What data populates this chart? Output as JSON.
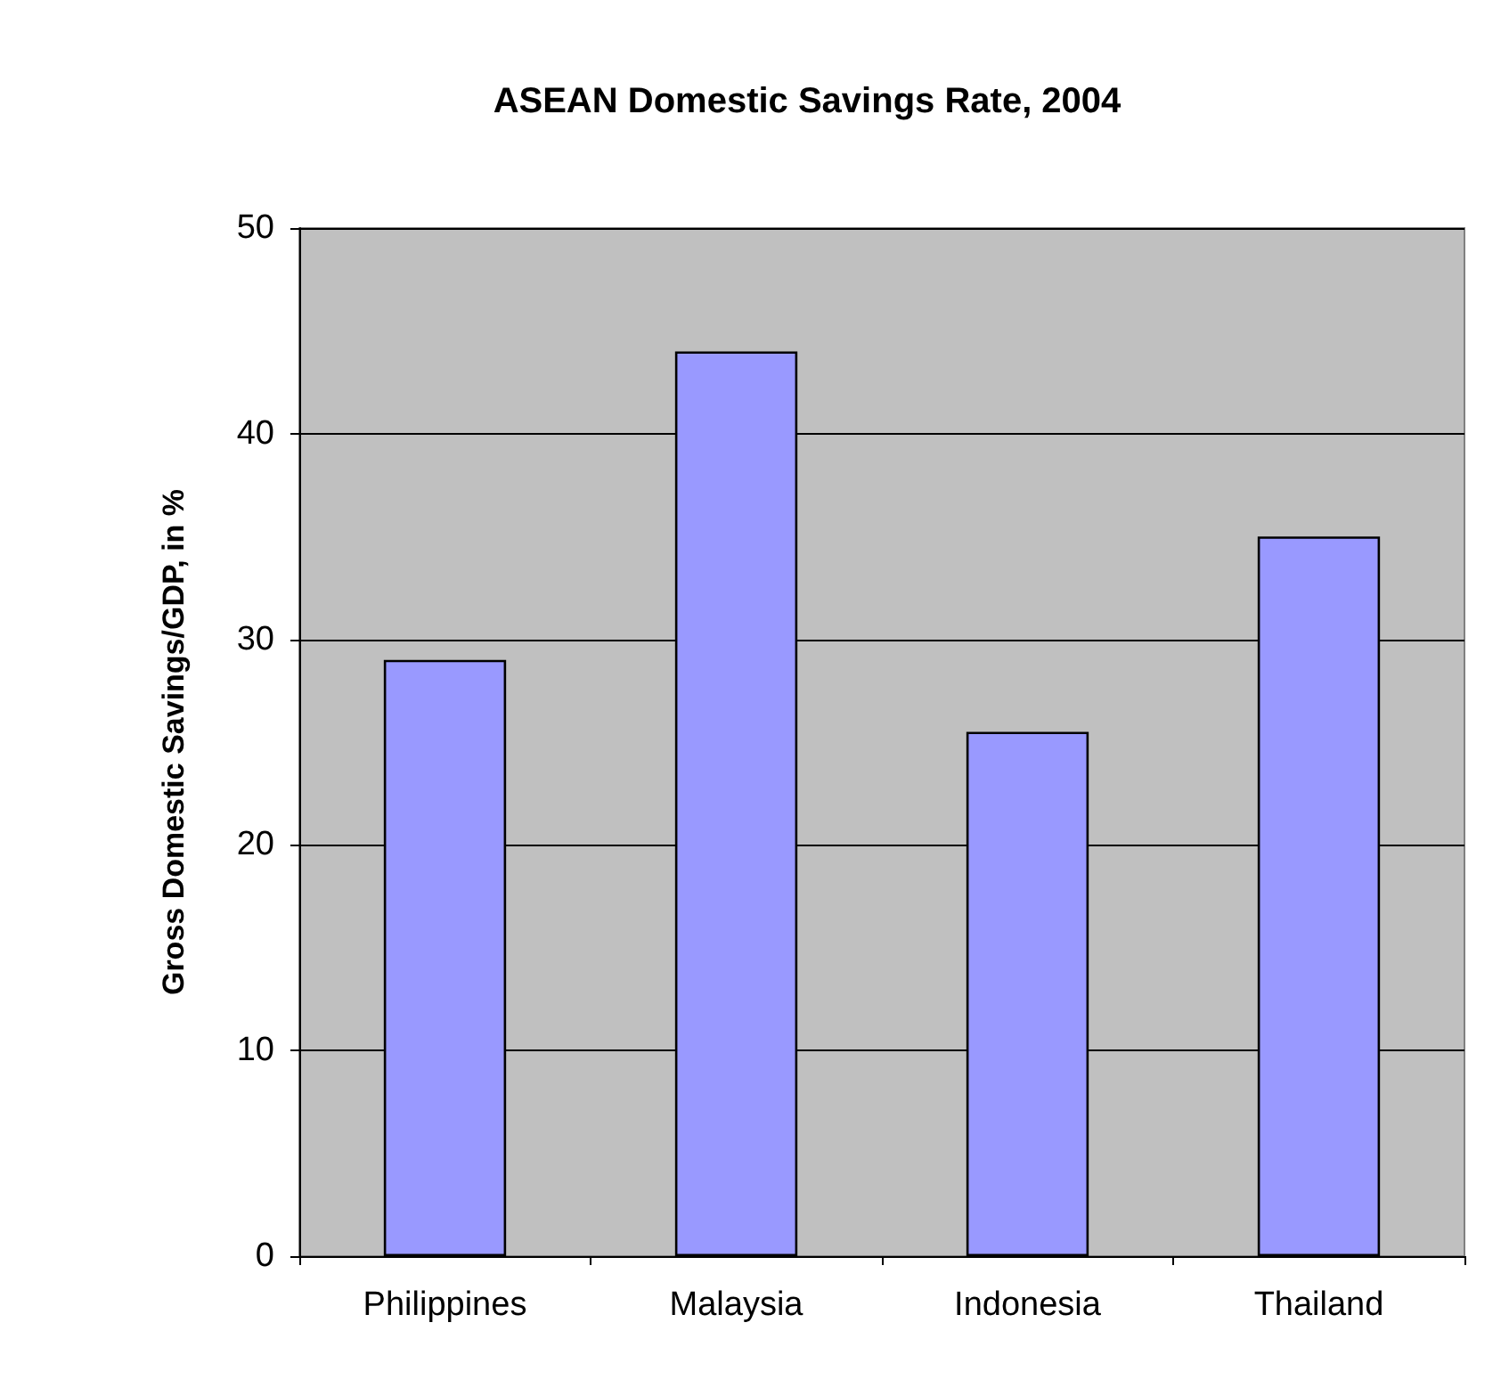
{
  "chart_data": {
    "type": "bar",
    "title": "ASEAN Domestic Savings Rate, 2004",
    "ylabel": "Gross Domestic Savings/GDP, in %",
    "categories": [
      "Philippines",
      "Malaysia",
      "Indonesia",
      "Thailand"
    ],
    "values": [
      29,
      44,
      25.5,
      35
    ],
    "color": "#9999ff",
    "ylim": [
      0,
      50
    ],
    "yticks": [
      0,
      10,
      20,
      30,
      40,
      50
    ],
    "grid": "y"
  }
}
